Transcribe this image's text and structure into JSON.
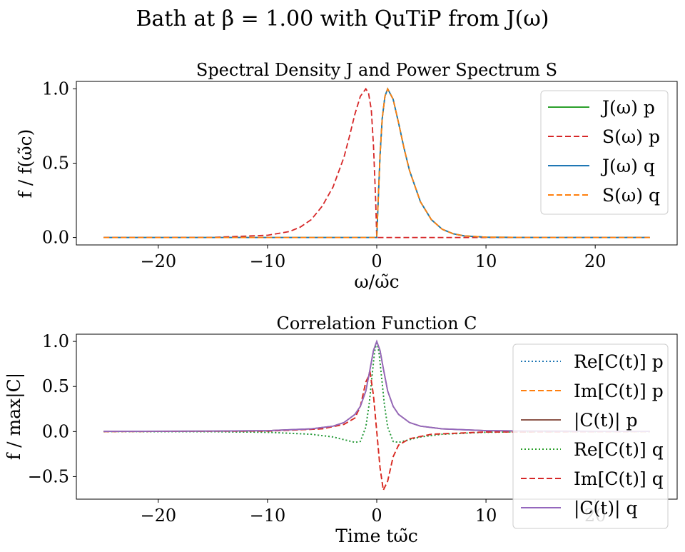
{
  "figure": {
    "suptitle": "Bath at β = 1.00 with QuTiP from J(ω)"
  },
  "chart_data": [
    {
      "type": "line",
      "title": "Spectral Density J and Power Spectrum S",
      "xlabel": "ω/ω̃c",
      "ylabel": "f / f(ω̃c)",
      "xlim": [
        -27.5,
        27.5
      ],
      "ylim": [
        -0.05,
        1.05
      ],
      "xticks": [
        -20,
        -10,
        0,
        10,
        20
      ],
      "xtick_labels": [
        "−20",
        "−10",
        "0",
        "10",
        "20"
      ],
      "yticks": [
        0.0,
        0.5,
        1.0
      ],
      "ytick_labels": [
        "0.0",
        "0.5",
        "1.0"
      ],
      "grid": false,
      "legend_position": "top-right",
      "series": [
        {
          "name": "J(ω) p",
          "color": "#2ca02c",
          "dash": "solid",
          "x": [
            -25,
            0,
            0.1,
            0.3,
            0.5,
            0.75,
            1,
            1.5,
            2,
            2.5,
            3,
            4,
            5,
            6,
            7,
            8,
            10,
            15,
            25
          ],
          "y": [
            0,
            0,
            0.19,
            0.55,
            0.8,
            0.95,
            1.0,
            0.93,
            0.77,
            0.6,
            0.45,
            0.24,
            0.12,
            0.055,
            0.025,
            0.011,
            0.002,
            0,
            0
          ]
        },
        {
          "name": "S(ω) p",
          "color": "#d62728",
          "dash": "dashed",
          "x": [
            -25,
            -15,
            -10,
            -8,
            -7,
            -6,
            -5,
            -4,
            -3,
            -2.5,
            -2,
            -1.5,
            -1,
            -0.75,
            -0.5,
            -0.3,
            -0.1,
            0,
            25
          ],
          "y": [
            0,
            0.001,
            0.015,
            0.04,
            0.07,
            0.12,
            0.21,
            0.34,
            0.54,
            0.68,
            0.83,
            0.95,
            1.0,
            0.97,
            0.86,
            0.62,
            0.25,
            0,
            0
          ]
        },
        {
          "name": "J(ω) q",
          "color": "#1f77b4",
          "dash": "solid",
          "x": [
            -25,
            0,
            0.1,
            0.3,
            0.5,
            0.75,
            1,
            1.5,
            2,
            2.5,
            3,
            4,
            5,
            6,
            7,
            8,
            10,
            15,
            25
          ],
          "y": [
            0,
            0,
            0.19,
            0.55,
            0.8,
            0.95,
            1.0,
            0.93,
            0.77,
            0.6,
            0.45,
            0.24,
            0.12,
            0.055,
            0.025,
            0.011,
            0.002,
            0,
            0
          ]
        },
        {
          "name": "S(ω) q",
          "color": "#ff7f0e",
          "dash": "dashed",
          "x": [
            -25,
            0,
            0.1,
            0.3,
            0.5,
            0.75,
            1,
            1.5,
            2,
            2.5,
            3,
            4,
            5,
            6,
            7,
            8,
            10,
            15,
            25
          ],
          "y": [
            0,
            0,
            0.19,
            0.55,
            0.8,
            0.95,
            1.0,
            0.93,
            0.77,
            0.6,
            0.45,
            0.24,
            0.12,
            0.055,
            0.025,
            0.011,
            0.002,
            0,
            0
          ]
        }
      ]
    },
    {
      "type": "line",
      "title": "Correlation Function C",
      "xlabel": "Time tω̃c",
      "ylabel": "f / max|C|",
      "xlim": [
        -27.5,
        27.5
      ],
      "ylim": [
        -0.75,
        1.08
      ],
      "xticks": [
        -20,
        -10,
        0,
        10,
        20
      ],
      "xtick_labels": [
        "−20",
        "−10",
        "0",
        "10",
        "20"
      ],
      "yticks": [
        -0.5,
        0.0,
        0.5,
        1.0
      ],
      "ytick_labels": [
        "−0.5",
        "0.0",
        "0.5",
        "1.0"
      ],
      "grid": false,
      "legend_position": "right",
      "series": [
        {
          "name": "Re[C(t)] p",
          "color": "#1f77b4",
          "dash": "dotted",
          "x": [
            -25,
            -15,
            -10,
            -6,
            -4,
            -3,
            -2,
            -1.5,
            -1,
            -0.7,
            -0.4,
            -0.2,
            0,
            0.2,
            0.4,
            0.7,
            1,
            1.5,
            2,
            3,
            4,
            6,
            10,
            15,
            25
          ],
          "y": [
            0,
            -0.002,
            -0.008,
            -0.03,
            -0.06,
            -0.09,
            -0.12,
            -0.11,
            0.05,
            0.3,
            0.65,
            0.88,
            1.0,
            0.88,
            0.65,
            0.3,
            0.05,
            -0.11,
            -0.12,
            -0.09,
            -0.06,
            -0.03,
            -0.008,
            -0.002,
            0
          ]
        },
        {
          "name": "Im[C(t)] p",
          "color": "#ff7f0e",
          "dash": "dashed",
          "x": [
            -25,
            -10,
            -5,
            -3,
            -2,
            -1.5,
            -1,
            -0.6,
            -0.3,
            0,
            0.3,
            0.6,
            1,
            1.5,
            2,
            3,
            5,
            10,
            25
          ],
          "y": [
            0,
            0.005,
            0.03,
            0.08,
            0.15,
            0.28,
            0.55,
            0.65,
            0.4,
            0,
            -0.4,
            -0.65,
            -0.55,
            -0.28,
            -0.15,
            -0.08,
            -0.03,
            -0.005,
            0
          ]
        },
        {
          "name": "|C(t)| p",
          "color": "#8c564b",
          "dash": "solid",
          "x": [
            -25,
            -15,
            -10,
            -6,
            -4,
            -3,
            -2,
            -1.5,
            -1,
            -0.6,
            -0.3,
            0,
            0.3,
            0.6,
            1,
            1.5,
            2,
            3,
            4,
            6,
            10,
            15,
            25
          ],
          "y": [
            0.002,
            0.005,
            0.01,
            0.03,
            0.06,
            0.1,
            0.19,
            0.28,
            0.45,
            0.7,
            0.9,
            1.0,
            0.9,
            0.7,
            0.45,
            0.28,
            0.19,
            0.1,
            0.06,
            0.03,
            0.01,
            0.005,
            0.002
          ]
        },
        {
          "name": "Re[C(t)] q",
          "color": "#2ca02c",
          "dash": "dotted",
          "x": [
            -25,
            -15,
            -10,
            -6,
            -4,
            -3,
            -2,
            -1.5,
            -1,
            -0.7,
            -0.4,
            -0.2,
            0,
            0.2,
            0.4,
            0.7,
            1,
            1.5,
            2,
            3,
            4,
            6,
            10,
            15,
            25
          ],
          "y": [
            0,
            -0.002,
            -0.008,
            -0.03,
            -0.06,
            -0.09,
            -0.12,
            -0.11,
            0.05,
            0.3,
            0.65,
            0.88,
            1.0,
            0.88,
            0.65,
            0.3,
            0.05,
            -0.11,
            -0.12,
            -0.09,
            -0.06,
            -0.03,
            -0.008,
            -0.002,
            0
          ]
        },
        {
          "name": "Im[C(t)] q",
          "color": "#d62728",
          "dash": "dashed",
          "x": [
            -25,
            -10,
            -5,
            -3,
            -2,
            -1.5,
            -1,
            -0.6,
            -0.3,
            0,
            0.3,
            0.6,
            1,
            1.5,
            2,
            3,
            5,
            10,
            25
          ],
          "y": [
            0,
            0.005,
            0.03,
            0.08,
            0.15,
            0.28,
            0.55,
            0.65,
            0.4,
            0,
            -0.4,
            -0.65,
            -0.55,
            -0.28,
            -0.15,
            -0.08,
            -0.03,
            -0.005,
            0
          ]
        },
        {
          "name": "|C(t)| q",
          "color": "#9467bd",
          "dash": "solid",
          "x": [
            -25,
            -15,
            -10,
            -6,
            -4,
            -3,
            -2,
            -1.5,
            -1,
            -0.6,
            -0.3,
            0,
            0.3,
            0.6,
            1,
            1.5,
            2,
            3,
            4,
            6,
            10,
            15,
            25
          ],
          "y": [
            0.002,
            0.005,
            0.01,
            0.03,
            0.06,
            0.1,
            0.19,
            0.28,
            0.45,
            0.7,
            0.9,
            1.0,
            0.9,
            0.7,
            0.45,
            0.28,
            0.19,
            0.1,
            0.06,
            0.03,
            0.01,
            0.005,
            0.002
          ]
        }
      ]
    }
  ]
}
